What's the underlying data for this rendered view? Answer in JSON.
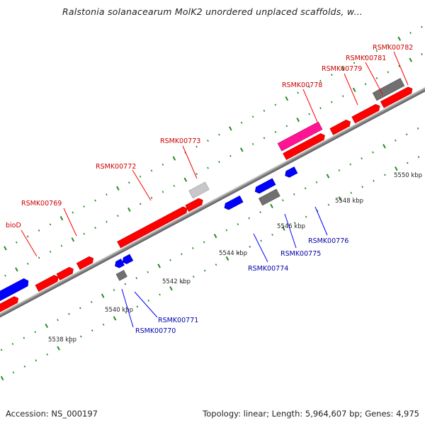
{
  "title": "Ralstonia solanacearum MolK2 unordered unplaced scaffolds, w...",
  "footer": {
    "accession": "Accession: NS_000197",
    "summary": "Topology: linear; Length: 5,964,607 bp; Genes: 4,975"
  },
  "colors": {
    "forward_gene": "#ff0000",
    "reverse_gene": "#0000ff",
    "highlighted_gene": "#ff1493",
    "other_feature": "#808080",
    "forward_label": "#cc0000",
    "reverse_label": "#0000aa",
    "tick": "#228b22",
    "backbone": "#999999"
  },
  "scale_labels": [
    "5538 kbp",
    "5540 kbp",
    "5542 kbp",
    "5544 kbp",
    "5546 kbp",
    "5548 kbp",
    "5550 kbp"
  ],
  "gene_labels_forward": [
    "bioD",
    "RSMK00769",
    "RSMK00772",
    "RSMK00773",
    "RSMK00778",
    "RSMK00779",
    "RSMK00781",
    "RSMK00782"
  ],
  "gene_labels_reverse": [
    "RSMK00770",
    "RSMK00771",
    "RSMK00774",
    "RSMK00775",
    "RSMK00776"
  ]
}
